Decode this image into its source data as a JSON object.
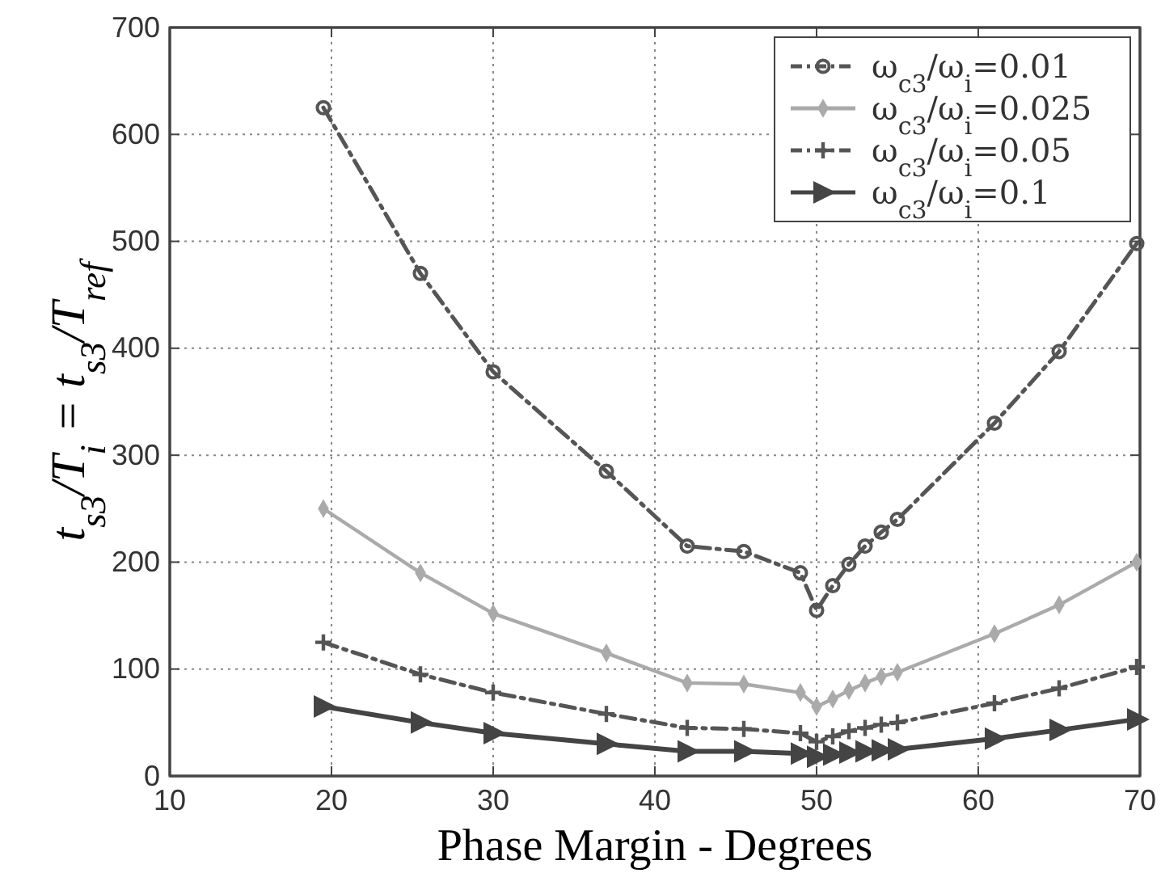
{
  "chart_data": {
    "type": "line",
    "xlabel": "Phase Margin - Degrees",
    "ylabel": "t$_{s3}$/T$_{i}$ = t$_{s3}$/T$_{ref}$",
    "x": [
      19.5,
      25.5,
      30,
      37,
      42,
      45.5,
      49,
      50,
      51,
      52,
      53,
      54,
      55,
      61,
      65,
      69.8
    ],
    "xlim": [
      10,
      70
    ],
    "xticks": [
      10,
      20,
      30,
      40,
      50,
      60,
      70
    ],
    "ylim": [
      0,
      700
    ],
    "yticks": [
      0,
      100,
      200,
      300,
      400,
      500,
      600,
      700
    ],
    "grid": true,
    "legend": "top right",
    "series": [
      {
        "name": "ω$_{c3}$/ω$_{i}$=0.01",
        "color": "#555555",
        "marker": "circle",
        "line_style": "dashed",
        "values": [
          625,
          470,
          378,
          285,
          215,
          210,
          190,
          155,
          178,
          198,
          215,
          228,
          240,
          330,
          397,
          498
        ]
      },
      {
        "name": "ω$_{c3}$/ω$_{i}$=0.025",
        "color": "#aaaaaa",
        "marker": "diamond",
        "line_style": "solid",
        "values": [
          250,
          190,
          152,
          115,
          87,
          86,
          78,
          65,
          72,
          80,
          87,
          93,
          97,
          133,
          160,
          200
        ]
      },
      {
        "name": "ω$_{c3}$/ω$_{i}$=0.05",
        "color": "#555555",
        "marker": "cross",
        "line_style": "dashed",
        "values": [
          125,
          95,
          78,
          58,
          45,
          44,
          40,
          32,
          37,
          42,
          45,
          48,
          50,
          68,
          82,
          102
        ]
      },
      {
        "name": "ω$_{c3}$/ω$_{i}$=0.1",
        "color": "#444444",
        "marker": "triangle",
        "line_style": "solid",
        "values": [
          65,
          50,
          40,
          30,
          23,
          23,
          21,
          18,
          20,
          22,
          23,
          24,
          25,
          35,
          43,
          53
        ]
      }
    ]
  }
}
